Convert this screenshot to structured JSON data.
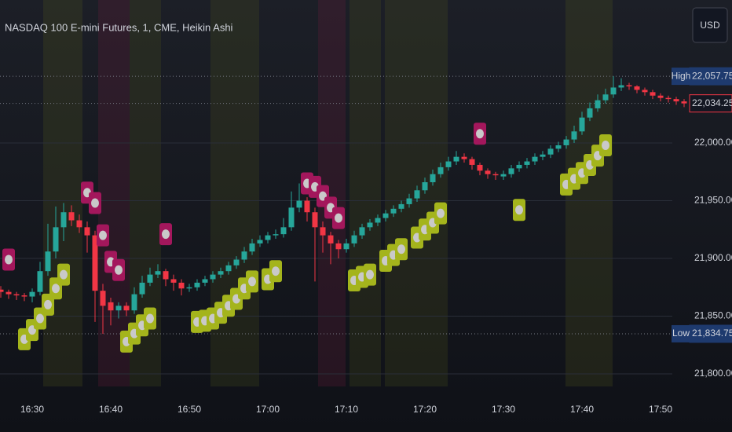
{
  "chart_data": {
    "type": "candlestick",
    "title": "NASDAQ 100 E-mini Futures, 1, CME, Heikin Ashi",
    "currency": "USD",
    "categories": [
      null,
      null,
      null,
      null,
      "16:30",
      null,
      null,
      null,
      null,
      null,
      null,
      null,
      null,
      null,
      "16:40",
      null,
      null,
      null,
      null,
      null,
      null,
      null,
      null,
      null,
      "16:50",
      null,
      null,
      null,
      null,
      null,
      null,
      null,
      null,
      null,
      "17:00",
      null,
      null,
      null,
      null,
      null,
      null,
      null,
      null,
      null,
      "17:10",
      null,
      null,
      null,
      null,
      null,
      null,
      null,
      null,
      null,
      "17:20",
      null,
      null,
      null,
      null,
      null,
      null,
      null,
      null,
      null,
      "17:30",
      null,
      null,
      null,
      null,
      null,
      null,
      null,
      null,
      null,
      "17:40",
      null,
      null,
      null,
      null,
      null,
      null,
      null,
      null,
      null,
      "17:50",
      null,
      null,
      null
    ],
    "open": [
      21873,
      21871,
      21869,
      21868,
      21867,
      21871,
      21889,
      21906,
      21927,
      21940,
      21933,
      21927,
      21920,
      21872,
      21862,
      21855,
      21859,
      21855,
      21869,
      21879,
      21886,
      21889,
      21882,
      21879,
      21874,
      21875,
      21879,
      21882,
      21886,
      21889,
      21894,
      21899,
      21906,
      21913,
      21916,
      21920,
      21921,
      21927,
      21944,
      21950,
      21940,
      21927,
      21920,
      21913,
      21908,
      21913,
      21920,
      21927,
      21931,
      21935,
      21939,
      21943,
      21947,
      21952,
      21959,
      21966,
      21973,
      21979,
      21984,
      21988,
      21986,
      21981,
      21976,
      21973,
      21971,
      21973,
      21978,
      21981,
      21984,
      21988,
      21990,
      21995,
      21998,
      22003,
      22010,
      22022,
      22030,
      22037,
      22042,
      22048,
      22050,
      22049,
      22046,
      22044,
      22041,
      22039,
      22038,
      22036
    ],
    "high": [
      21876,
      21873,
      21871,
      21870,
      21874,
      21897,
      21930,
      21945,
      21948,
      21946,
      21938,
      21932,
      21924,
      21878,
      21866,
      21862,
      21862,
      21875,
      21885,
      21892,
      21895,
      21891,
      21886,
      21882,
      21878,
      21882,
      21885,
      21889,
      21892,
      21897,
      21902,
      21910,
      21917,
      21920,
      21923,
      21925,
      21935,
      21958,
      21965,
      21953,
      21944,
      21932,
      21923,
      21916,
      21917,
      21924,
      21930,
      21934,
      21938,
      21942,
      21946,
      21950,
      21956,
      21963,
      21970,
      21977,
      21983,
      21988,
      21993,
      21991,
      21988,
      21983,
      21978,
      21975,
      21976,
      21981,
      21984,
      21987,
      21991,
      21993,
      21998,
      22001,
      22006,
      22015,
      22027,
      22035,
      22042,
      22047,
      22057.75,
      22056,
      22052,
      22050,
      22048,
      22046,
      22043,
      22041,
      22040,
      22038
    ],
    "low": [
      21866,
      21865,
      21864,
      21863,
      21862,
      21868,
      21885,
      21900,
      21915,
      21928,
      21922,
      21905,
      21845,
      21834.75,
      21842,
      21848,
      21850,
      21852,
      21866,
      21876,
      21883,
      21876,
      21872,
      21868,
      21871,
      21872,
      21876,
      21879,
      21883,
      21886,
      21891,
      21896,
      21903,
      21910,
      21913,
      21917,
      21918,
      21924,
      21940,
      21932,
      21880,
      21905,
      21895,
      21900,
      21905,
      21910,
      21917,
      21924,
      21928,
      21932,
      21936,
      21940,
      21944,
      21949,
      21956,
      21963,
      21970,
      21976,
      21981,
      21983,
      21977,
      21972,
      21969,
      21968,
      21968,
      21970,
      21975,
      21978,
      21981,
      21985,
      21987,
      21992,
      21995,
      22000,
      22007,
      22019,
      22027,
      22034,
      22039,
      22045,
      22046,
      22043,
      22041,
      22038,
      22036,
      22035,
      22033,
      22031
    ],
    "close": [
      21871,
      21869,
      21868,
      21867,
      21871,
      21889,
      21906,
      21927,
      21940,
      21933,
      21927,
      21920,
      21872,
      21859,
      21855,
      21859,
      21855,
      21869,
      21879,
      21886,
      21889,
      21882,
      21879,
      21874,
      21875,
      21879,
      21882,
      21886,
      21889,
      21894,
      21899,
      21906,
      21913,
      21916,
      21920,
      21921,
      21927,
      21944,
      21950,
      21940,
      21927,
      21920,
      21913,
      21908,
      21913,
      21920,
      21927,
      21931,
      21935,
      21939,
      21943,
      21947,
      21952,
      21959,
      21966,
      21973,
      21979,
      21984,
      21988,
      21986,
      21981,
      21976,
      21973,
      21972,
      21973,
      21978,
      21981,
      21984,
      21988,
      21990,
      21995,
      21998,
      22003,
      22010,
      22022,
      22030,
      22037,
      22042,
      22048,
      22050,
      22049,
      22046,
      22044,
      22041,
      22039,
      22038,
      22036,
      22034.25
    ],
    "buy_signals": [
      null,
      null,
      null,
      21830,
      21838,
      21848,
      21860,
      21874,
      21886,
      null,
      null,
      null,
      null,
      null,
      null,
      null,
      21828,
      21835,
      21842,
      21848,
      null,
      null,
      null,
      null,
      null,
      21845,
      21846,
      21848,
      21853,
      21859,
      21865,
      21874,
      21880,
      null,
      21882,
      21889,
      null,
      null,
      null,
      null,
      null,
      null,
      null,
      null,
      null,
      21881,
      21884,
      21886,
      null,
      21898,
      21903,
      21908,
      null,
      21918,
      21925,
      21931,
      21939,
      null,
      null,
      null,
      null,
      null,
      null,
      null,
      null,
      null,
      21942,
      null,
      null,
      null,
      null,
      null,
      21964,
      21969,
      21974,
      21981,
      21989,
      21998,
      null,
      null,
      null,
      null,
      null,
      null,
      null,
      null,
      null,
      null
    ],
    "sell_signals": [
      null,
      21899,
      null,
      null,
      null,
      null,
      null,
      null,
      null,
      null,
      null,
      21957,
      21948,
      21920,
      21897,
      21890,
      null,
      null,
      null,
      null,
      null,
      21921,
      null,
      null,
      null,
      null,
      null,
      null,
      null,
      null,
      null,
      null,
      null,
      null,
      null,
      null,
      null,
      null,
      null,
      21965,
      21962,
      21954,
      21944,
      21935,
      null,
      null,
      null,
      null,
      null,
      null,
      null,
      null,
      null,
      null,
      null,
      null,
      null,
      null,
      null,
      null,
      null,
      22008,
      null,
      null,
      null,
      null,
      null,
      null,
      null,
      null,
      null,
      null,
      null,
      null,
      null,
      null,
      null,
      null,
      null,
      null,
      null,
      null,
      null,
      null,
      null,
      null,
      null,
      null
    ],
    "up_color": "#26a69a",
    "down_color": "#f23645",
    "buy_color": "#a4b41c",
    "sell_color": "#a3175c",
    "ylim": [
      21776.9,
      22123.8
    ],
    "yticks": [
      {
        "value": 21800,
        "label": "21,800.00"
      },
      {
        "value": 21850,
        "label": "21,850.00"
      },
      {
        "value": 21900,
        "label": "21,900.00"
      },
      {
        "value": 21950,
        "label": "21,950.00"
      },
      {
        "value": 22000,
        "label": "22,000.00"
      }
    ],
    "grid": true,
    "high_marker": {
      "text": "High",
      "value": 22057.75,
      "label": "22,057.75"
    },
    "last_marker": {
      "value": 22034.25,
      "label": "22,034.25"
    },
    "low_marker": {
      "text": "Low",
      "value": 21834.75,
      "label": "21,834.75"
    }
  }
}
